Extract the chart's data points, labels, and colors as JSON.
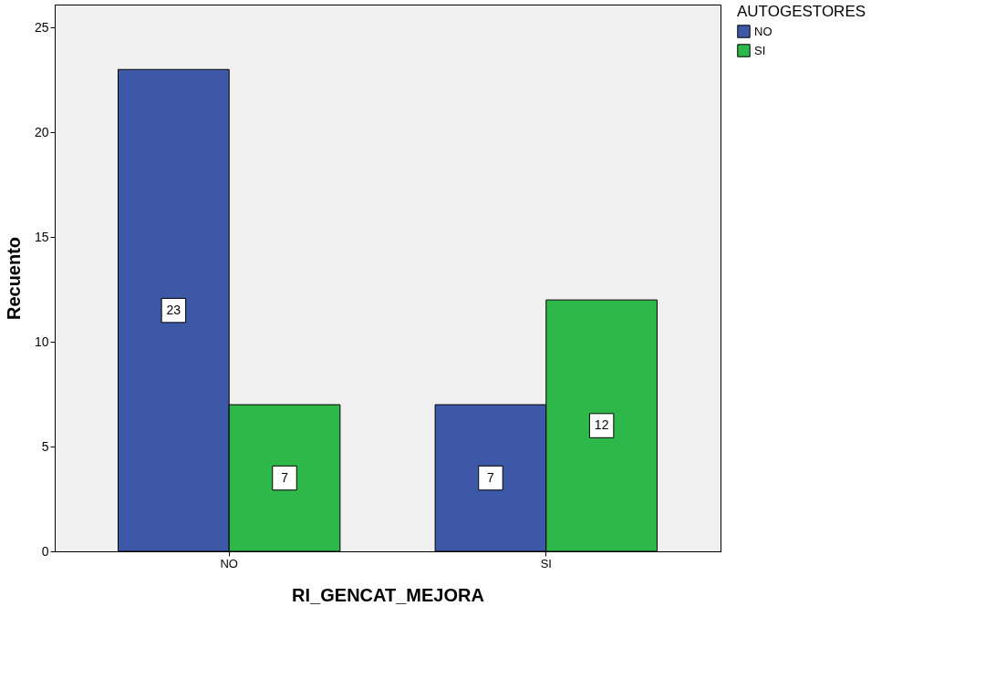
{
  "chart_data": {
    "type": "bar",
    "xlabel": "RI_GENCAT_MEJORA",
    "ylabel": "Recuento",
    "legend_title": "AUTOGESTORES",
    "categories": [
      "NO",
      "SI"
    ],
    "series": [
      {
        "name": "NO",
        "color": "#3e58a8",
        "values": [
          23,
          7
        ]
      },
      {
        "name": "SI",
        "color": "#2eb84a",
        "values": [
          7,
          12
        ]
      }
    ],
    "ylim": [
      0,
      26.1
    ],
    "yticks": [
      0,
      5,
      10,
      15,
      20,
      25
    ],
    "grid": false,
    "legend": "top right",
    "data_labels": true
  }
}
